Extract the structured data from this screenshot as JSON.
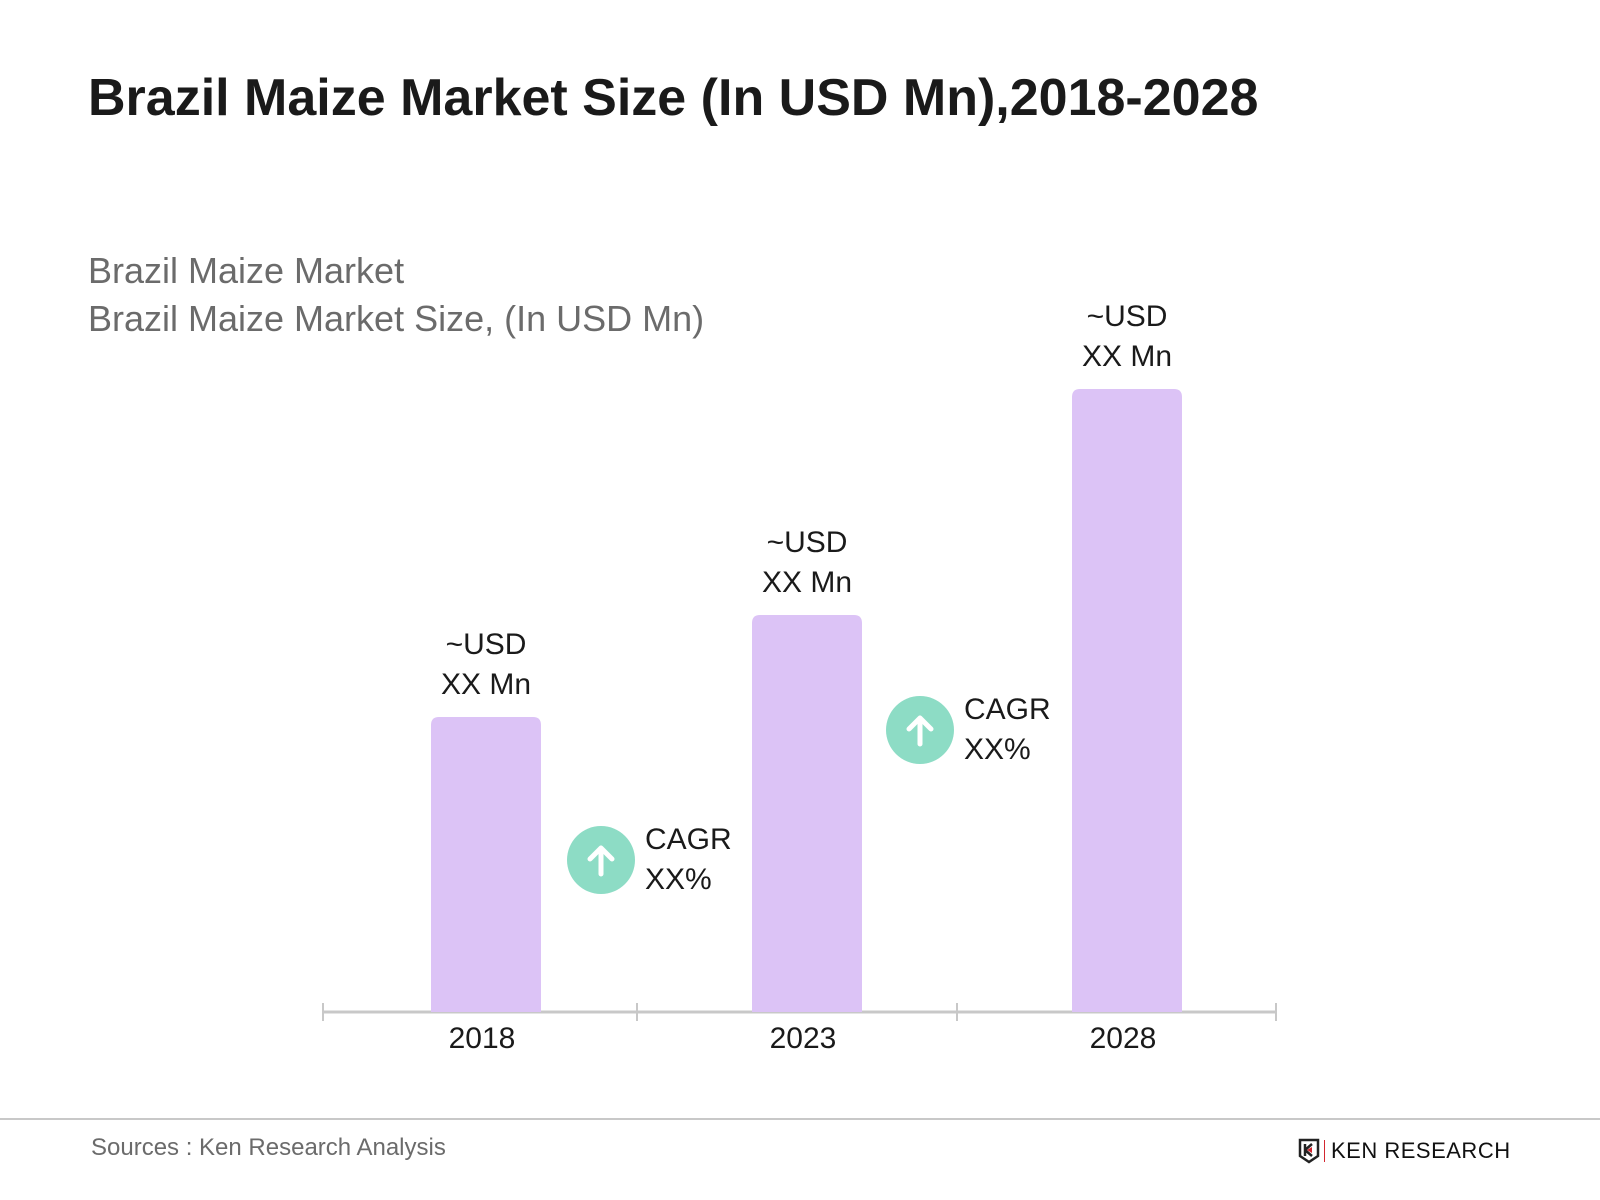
{
  "title": "Brazil Maize Market Size (In USD Mn),2018-2028",
  "subtitle_1": "Brazil Maize Market",
  "subtitle_2": "Brazil Maize Market Size, (In USD Mn)",
  "chart_data": {
    "type": "bar",
    "categories": [
      "2018",
      "2023",
      "2028"
    ],
    "data_labels": [
      {
        "line1": "~USD",
        "line2": "XX Mn"
      },
      {
        "line1": "~USD",
        "line2": "XX Mn"
      },
      {
        "line1": "~USD",
        "line2": "XX Mn"
      }
    ],
    "values": null,
    "bar_color": "#dcc3f6",
    "axis_color": "#c8c8c8",
    "grid": false,
    "annotations": [
      {
        "between": [
          "2018",
          "2023"
        ],
        "line1": "CAGR",
        "line2": "XX%",
        "icon": "arrow-up-icon",
        "color": "#8ddcc5"
      },
      {
        "between": [
          "2023",
          "2028"
        ],
        "line1": "CAGR",
        "line2": "XX%",
        "icon": "arrow-up-icon",
        "color": "#8ddcc5"
      }
    ]
  },
  "footer": {
    "source": "Sources : Ken Research Analysis",
    "logo_text": "KEN RESEARCH"
  }
}
